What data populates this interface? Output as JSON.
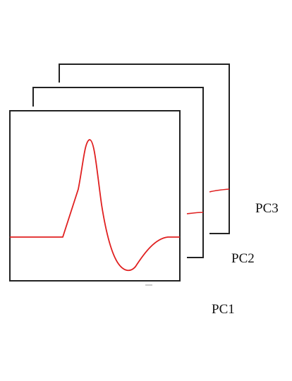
{
  "labels": {
    "pc1": "PC1",
    "pc2": "PC2",
    "pc3": "PC3"
  },
  "colors": {
    "frame": "#222222",
    "waveform": "#e02020",
    "background": "#ffffff"
  }
}
